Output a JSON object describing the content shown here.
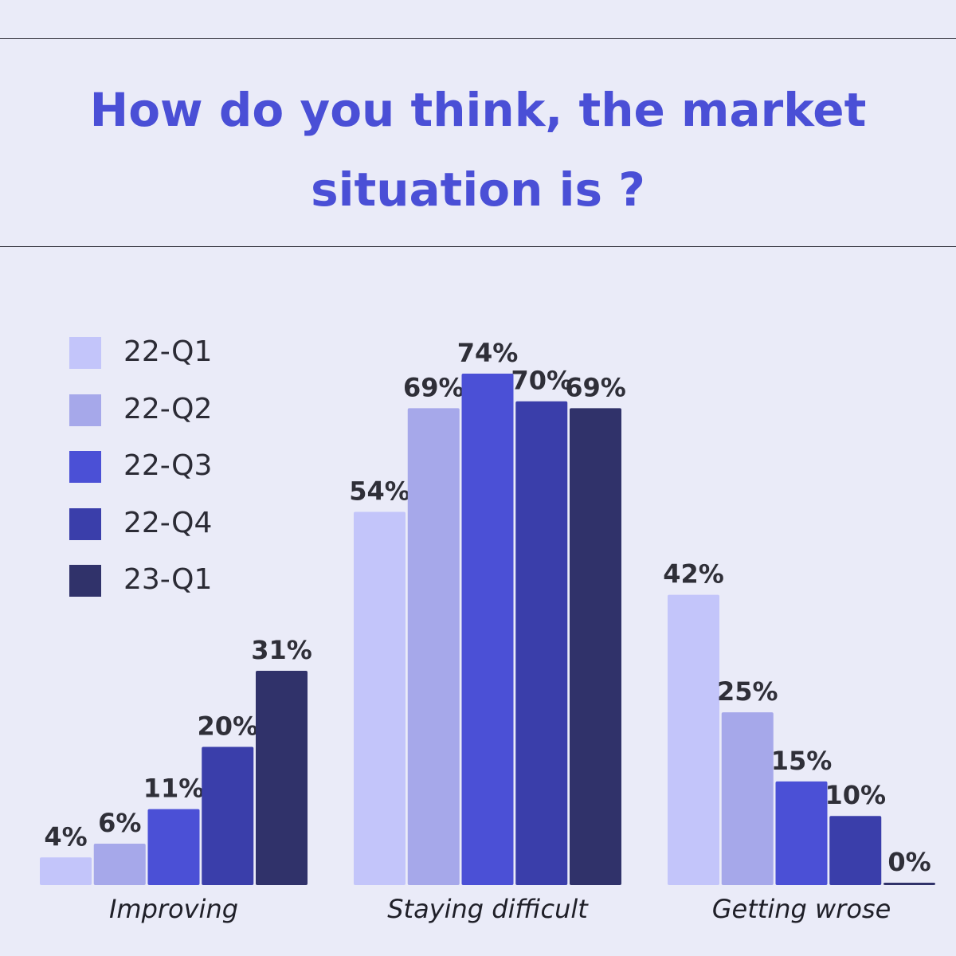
{
  "title": "How do you think, the market situation is ?",
  "chart_data": {
    "type": "bar",
    "title": "How do you think, the market situation is ?",
    "categories": [
      "Improving",
      "Staying difficult",
      "Getting wrose"
    ],
    "series": [
      {
        "name": "22-Q1",
        "color": "#c3c5fa",
        "values": [
          4,
          54,
          42
        ],
        "labels": [
          "4%",
          "54%",
          "42%"
        ]
      },
      {
        "name": "22-Q2",
        "color": "#a6a8ea",
        "values": [
          6,
          69,
          25
        ],
        "labels": [
          "6%",
          "69%",
          "25%"
        ]
      },
      {
        "name": "22-Q3",
        "color": "#4b50d6",
        "values": [
          11,
          74,
          15
        ],
        "labels": [
          "11%",
          "74%",
          "15%"
        ]
      },
      {
        "name": "22-Q4",
        "color": "#3a3eaa",
        "values": [
          20,
          70,
          10
        ],
        "labels": [
          "20%",
          "70%",
          "10%"
        ]
      },
      {
        "name": "23-Q1",
        "color": "#30326a",
        "values": [
          31,
          69,
          0
        ],
        "labels": [
          "31%",
          "69%",
          "0%"
        ]
      }
    ],
    "ylim": [
      0,
      74
    ],
    "grid": false,
    "legend": "top-left"
  }
}
